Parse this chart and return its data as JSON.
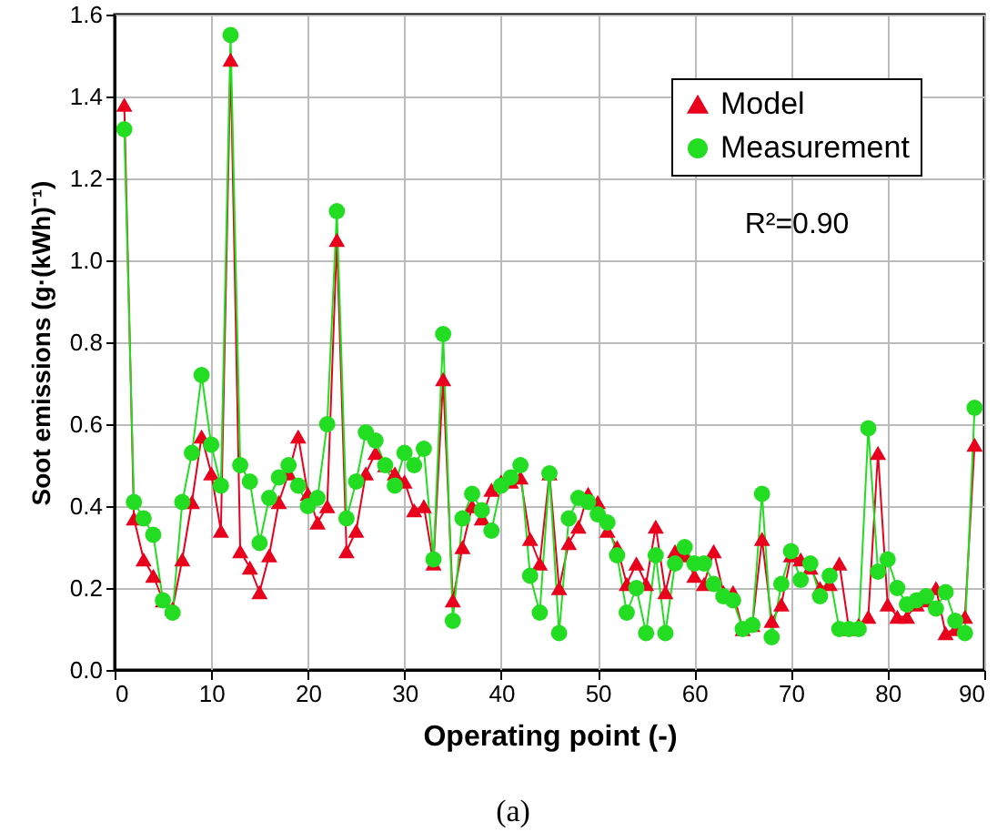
{
  "chart_data": {
    "type": "line",
    "xlabel": "Operating point (-)",
    "ylabel": "Soot emissions (g·(kWh)⁻¹)",
    "annotations": [
      "R²=0.90",
      "(a)"
    ],
    "x": [
      1,
      2,
      3,
      4,
      5,
      6,
      7,
      8,
      9,
      10,
      11,
      12,
      13,
      14,
      15,
      16,
      17,
      18,
      19,
      20,
      21,
      22,
      23,
      24,
      25,
      26,
      27,
      28,
      29,
      30,
      31,
      32,
      33,
      34,
      35,
      36,
      37,
      38,
      39,
      40,
      41,
      42,
      43,
      44,
      45,
      46,
      47,
      48,
      49,
      50,
      51,
      52,
      53,
      54,
      55,
      56,
      57,
      58,
      59,
      60,
      61,
      62,
      63,
      64,
      65,
      66,
      67,
      68,
      69,
      70,
      71,
      72,
      73,
      74,
      75,
      76,
      77,
      78,
      79,
      80,
      81,
      82,
      83,
      84,
      85,
      86,
      87,
      88,
      89
    ],
    "series": [
      {
        "name": "Model",
        "color": "#e8001c",
        "marker": "triangle",
        "values": [
          1.38,
          0.37,
          0.27,
          0.23,
          0.17,
          0.15,
          0.27,
          0.41,
          0.57,
          0.48,
          0.34,
          1.49,
          0.29,
          0.25,
          0.19,
          0.28,
          0.41,
          0.48,
          0.57,
          0.43,
          0.36,
          0.4,
          1.05,
          0.29,
          0.34,
          0.48,
          0.53,
          0.5,
          0.48,
          0.46,
          0.39,
          0.4,
          0.26,
          0.71,
          0.17,
          0.3,
          0.4,
          0.37,
          0.44,
          0.46,
          0.46,
          0.47,
          0.32,
          0.26,
          0.48,
          0.2,
          0.31,
          0.35,
          0.43,
          0.41,
          0.34,
          0.3,
          0.21,
          0.26,
          0.21,
          0.35,
          0.19,
          0.29,
          0.28,
          0.23,
          0.21,
          0.29,
          0.19,
          0.19,
          0.1,
          0.11,
          0.32,
          0.12,
          0.16,
          0.28,
          0.27,
          0.25,
          0.2,
          0.21,
          0.26,
          0.1,
          0.11,
          0.13,
          0.53,
          0.16,
          0.13,
          0.13,
          0.16,
          0.17,
          0.2,
          0.09,
          0.1,
          0.13,
          0.55
        ]
      },
      {
        "name": "Measurement",
        "color": "#22dd22",
        "marker": "circle",
        "values": [
          1.32,
          0.41,
          0.37,
          0.33,
          0.17,
          0.14,
          0.41,
          0.53,
          0.72,
          0.55,
          0.45,
          1.55,
          0.5,
          0.46,
          0.31,
          0.42,
          0.47,
          0.5,
          0.45,
          0.4,
          0.42,
          0.6,
          1.12,
          0.37,
          0.46,
          0.58,
          0.56,
          0.5,
          0.45,
          0.53,
          0.5,
          0.54,
          0.27,
          0.82,
          0.12,
          0.37,
          0.43,
          0.39,
          0.34,
          0.45,
          0.47,
          0.5,
          0.23,
          0.14,
          0.48,
          0.09,
          0.37,
          0.42,
          0.41,
          0.38,
          0.36,
          0.28,
          0.14,
          0.2,
          0.09,
          0.28,
          0.09,
          0.26,
          0.3,
          0.26,
          0.26,
          0.21,
          0.18,
          0.17,
          0.1,
          0.11,
          0.43,
          0.08,
          0.21,
          0.29,
          0.22,
          0.26,
          0.18,
          0.23,
          0.1,
          0.1,
          0.1,
          0.59,
          0.24,
          0.27,
          0.2,
          0.16,
          0.17,
          0.18,
          0.15,
          0.19,
          0.12,
          0.09,
          0.64
        ]
      }
    ],
    "xlim": [
      0,
      90
    ],
    "xticks": [
      0,
      10,
      20,
      30,
      40,
      50,
      60,
      70,
      80,
      90
    ],
    "ylim": [
      0,
      1.6
    ],
    "yticks": [
      {
        "value": 0,
        "label": "0.0"
      },
      0.2,
      0.4,
      0.6,
      0.8,
      {
        "value": 1,
        "label": "1.0"
      },
      1.2,
      1.4,
      1.6
    ],
    "grid": true,
    "legend": "top right",
    "line_style": "solid"
  }
}
